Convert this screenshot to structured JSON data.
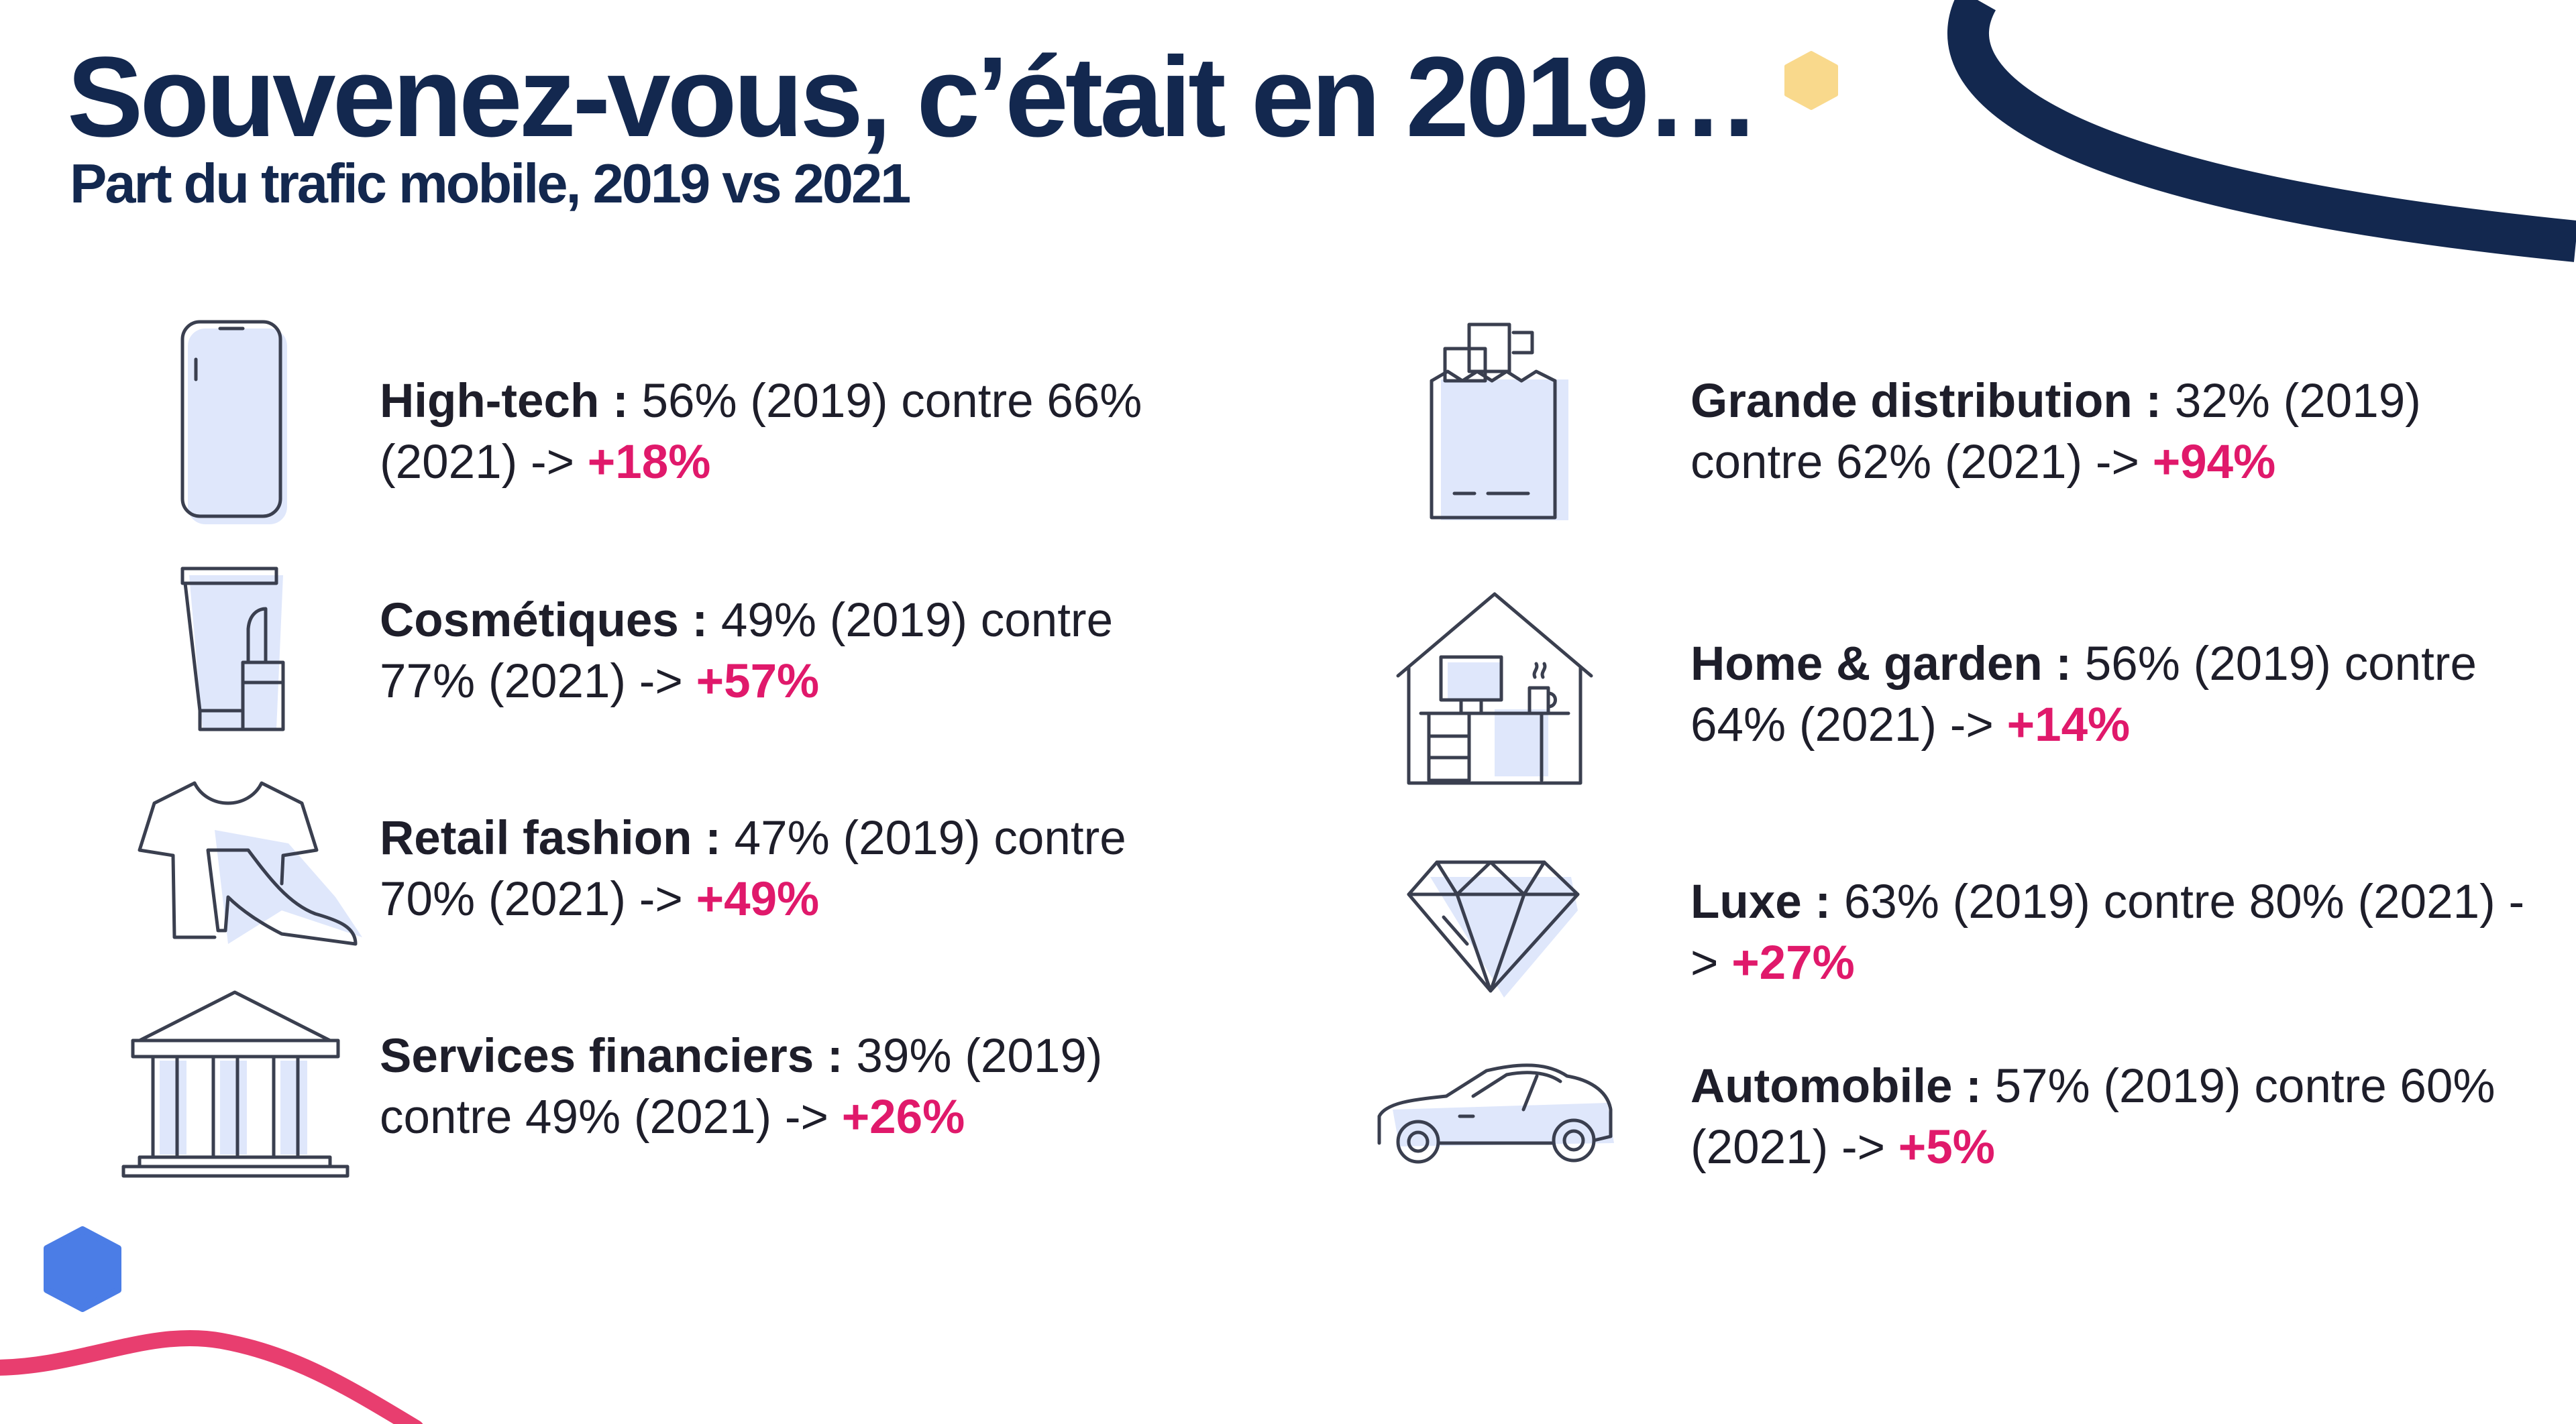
{
  "header": {
    "title": "Souvenez-vous, c’était en 2019…",
    "subtitle": "Part du trafic mobile, 2019 vs 2021"
  },
  "colors": {
    "navy": "#13284f",
    "accent": "#e0196b",
    "icon_fill": "#dfe7fb",
    "hex_yellow": "#f9d98c",
    "hex_blue": "#4b7de6",
    "wave_pink": "#e83e6f"
  },
  "items": [
    {
      "icon": "smartphone-icon",
      "name": "High-tech :",
      "text": " 56% (2019) contre 66% (2021) -> ",
      "delta": "+18%"
    },
    {
      "icon": "cosmetics-icon",
      "name": "Cosmétiques :",
      "text": " 49% (2019) contre 77% (2021) -> ",
      "delta": "+57%"
    },
    {
      "icon": "fashion-icon",
      "name": "Retail fashion :",
      "text": " 47% (2019) contre 70% (2021) -> ",
      "delta": "+49%"
    },
    {
      "icon": "bank-icon",
      "name": "Services financiers :",
      "text": " 39% (2019) contre 49% (2021) -> ",
      "delta": "+26%"
    },
    {
      "icon": "shopping-bag-icon",
      "name": "Grande distribution :",
      "text": " 32% (2019) contre 62% (2021) -> ",
      "delta": "+94%"
    },
    {
      "icon": "home-office-icon",
      "name": "Home & garden :",
      "text": " 56% (2019) contre 64% (2021) -> ",
      "delta": "+14%"
    },
    {
      "icon": "diamond-icon",
      "name": "Luxe :",
      "text": " 63% (2019) contre 80% (2021) -> ",
      "delta": "+27%"
    },
    {
      "icon": "car-icon",
      "name": "Automobile :",
      "text": " 57% (2019) contre 60% (2021) -> ",
      "delta": "+5%"
    }
  ]
}
